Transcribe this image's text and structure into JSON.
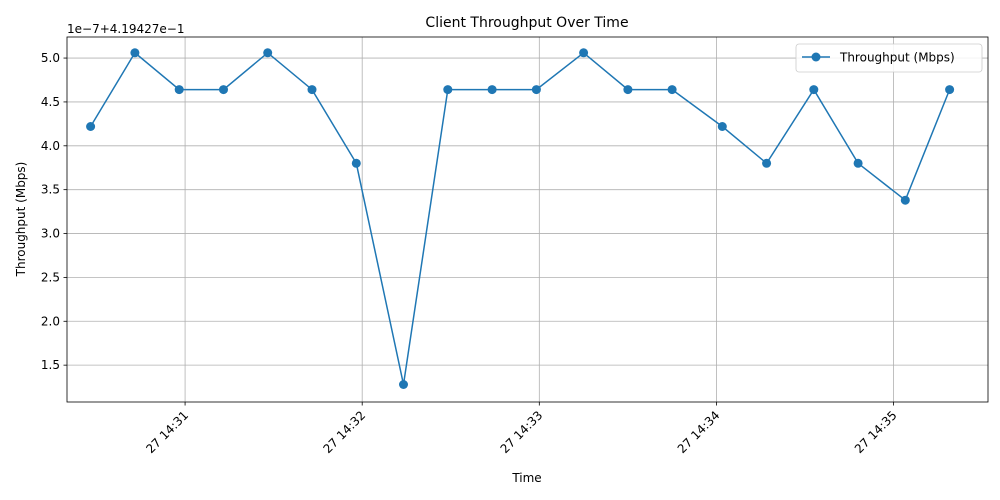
{
  "chart_data": {
    "type": "line",
    "title": "Client Throughput Over Time",
    "xlabel": "Time",
    "ylabel": "Throughput (Mbps)",
    "offset_label": "1e−7+4.19427e−1",
    "x_ticks": [
      {
        "label": "27 14:31",
        "time": "14:31"
      },
      {
        "label": "27 14:32",
        "time": "14:32"
      },
      {
        "label": "27 14:33",
        "time": "14:33"
      },
      {
        "label": "27 14:34",
        "time": "14:34"
      },
      {
        "label": "27 14:35",
        "time": "14:35"
      }
    ],
    "y_ticks": [
      "1.5",
      "2.0",
      "2.5",
      "3.0",
      "3.5",
      "4.0",
      "4.5",
      "5.0"
    ],
    "xlim": [
      "14:30:20",
      "14:35:32"
    ],
    "ylim": [
      1.08,
      5.24
    ],
    "grid": true,
    "legend_position": "top-right",
    "series": [
      {
        "name": "Throughput (Mbps)",
        "color": "#1f77b4",
        "marker": "circle",
        "x": [
          "14:30:28",
          "14:30:43",
          "14:30:58",
          "14:31:13",
          "14:31:28",
          "14:31:43",
          "14:31:58",
          "14:32:14",
          "14:32:29",
          "14:32:44",
          "14:32:59",
          "14:33:15",
          "14:33:30",
          "14:33:45",
          "14:34:02",
          "14:34:17",
          "14:34:33",
          "14:34:48",
          "14:35:04",
          "14:35:19"
        ],
        "y": [
          4.22,
          5.06,
          4.64,
          4.64,
          5.06,
          4.64,
          3.8,
          1.28,
          4.64,
          4.64,
          4.64,
          5.06,
          4.64,
          4.64,
          4.22,
          3.8,
          4.64,
          3.8,
          3.38,
          4.64
        ]
      }
    ]
  }
}
